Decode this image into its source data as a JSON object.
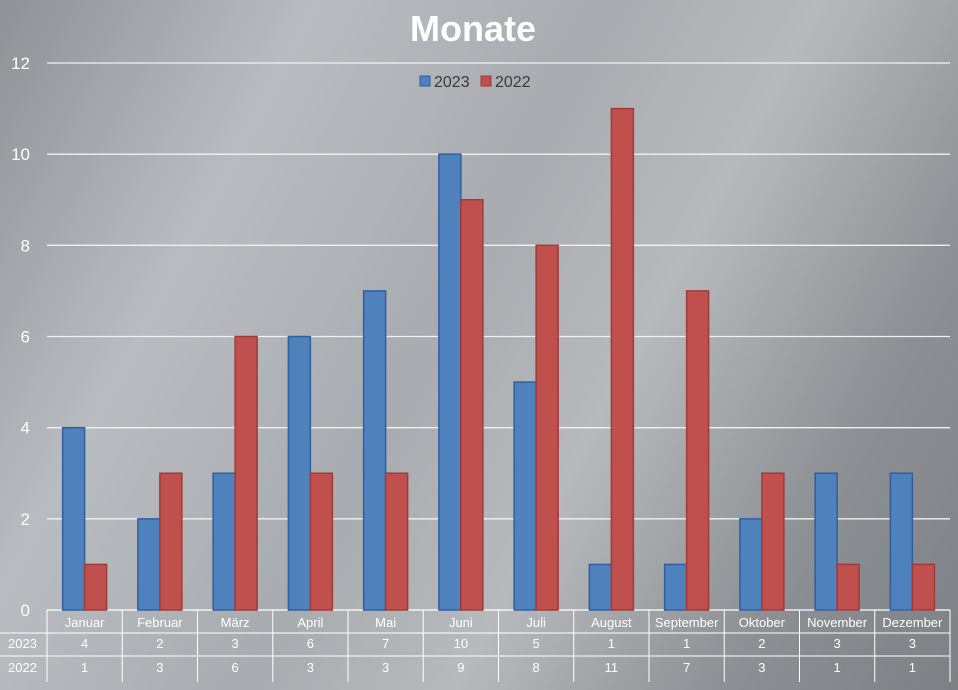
{
  "chart_data": {
    "type": "bar",
    "title": "Monate",
    "categories": [
      "Januar",
      "Februar",
      "März",
      "April",
      "Mai",
      "Juni",
      "Juli",
      "August",
      "September",
      "Oktober",
      "November",
      "Dezember"
    ],
    "series": [
      {
        "name": "2023",
        "values": [
          4,
          2,
          3,
          6,
          7,
          10,
          5,
          1,
          1,
          2,
          3,
          3
        ],
        "color": "#4f81bd"
      },
      {
        "name": "2022",
        "values": [
          1,
          3,
          6,
          3,
          3,
          9,
          8,
          11,
          7,
          3,
          1,
          1
        ],
        "color": "#c0504d"
      }
    ],
    "ylim": [
      0,
      12
    ],
    "yticks": [
      "0",
      "2",
      "4",
      "6",
      "8",
      "10",
      "12"
    ],
    "grid": true,
    "legend": "top-center",
    "data_table": true
  }
}
